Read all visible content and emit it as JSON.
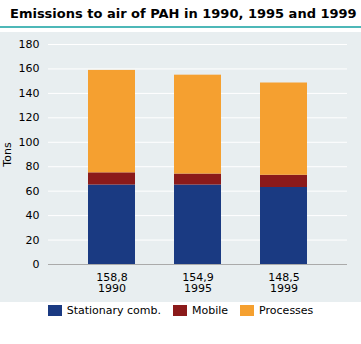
{
  "chart_data": {
    "type": "bar",
    "title": "Emissions to air of PAH in 1990, 1995 and 1999",
    "ylabel": "Tons",
    "categories": [
      "158,8\n1990",
      "154,9\n1995",
      "148,5\n1999"
    ],
    "series": [
      {
        "name": "Stationary comb.",
        "color": "#1a3a82",
        "values": [
          65,
          65,
          63
        ]
      },
      {
        "name": "Mobile",
        "color": "#8b1a1a",
        "values": [
          10,
          9,
          10
        ]
      },
      {
        "name": "Processes",
        "color": "#f5a030",
        "values": [
          83.8,
          80.9,
          75.5
        ]
      }
    ],
    "stacked": true,
    "ylim": [
      0,
      180
    ],
    "yticks": [
      0,
      20,
      40,
      60,
      80,
      100,
      120,
      140,
      160,
      180
    ],
    "grid": true,
    "legend": "bottom"
  }
}
